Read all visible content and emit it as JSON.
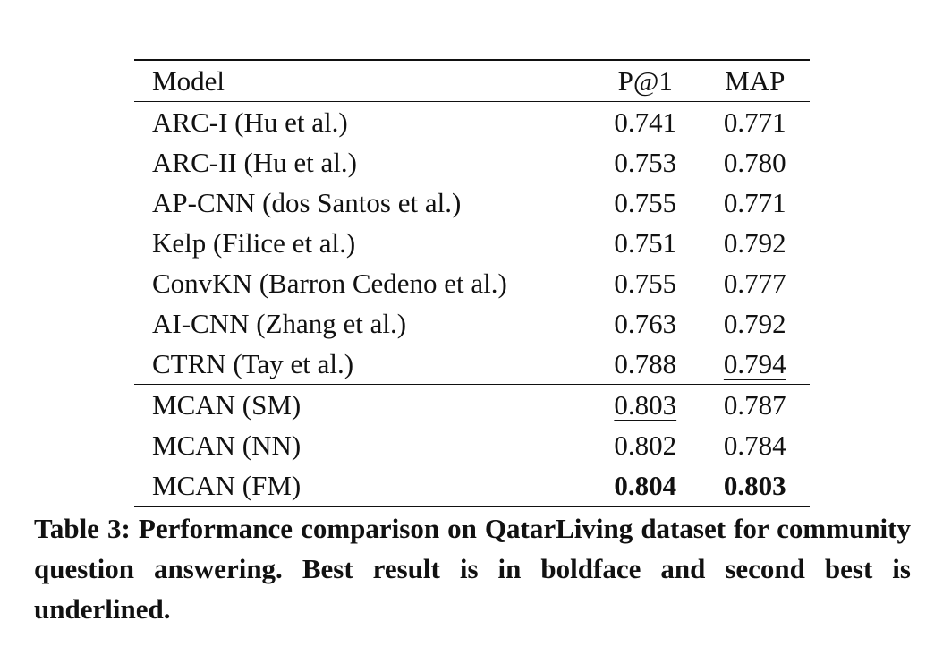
{
  "table": {
    "header": [
      "Model",
      "P@1",
      "MAP"
    ],
    "rows": [
      [
        "ARC-I (Hu et al.)",
        "0.741",
        "0.771"
      ],
      [
        "ARC-II (Hu et al.)",
        "0.753",
        "0.780"
      ],
      [
        "AP-CNN (dos Santos et al.)",
        "0.755",
        "0.771"
      ],
      [
        "Kelp (Filice et al.)",
        "0.751",
        "0.792"
      ],
      [
        "ConvKN (Barron Cedeno et al.)",
        "0.755",
        "0.777"
      ],
      [
        "AI-CNN (Zhang et al.)",
        "0.763",
        "0.792"
      ],
      [
        "CTRN (Tay et al.)",
        "0.788",
        "0.794"
      ],
      [
        "MCAN (SM)",
        "0.803",
        "0.787"
      ],
      [
        "MCAN (NN)",
        "0.802",
        "0.784"
      ],
      [
        "MCAN (FM)",
        "0.804",
        "0.803"
      ]
    ]
  },
  "caption": "Table 3: Performance comparison on QatarLiving dataset for community question answering. Best result is in boldface and second best is underlined."
}
